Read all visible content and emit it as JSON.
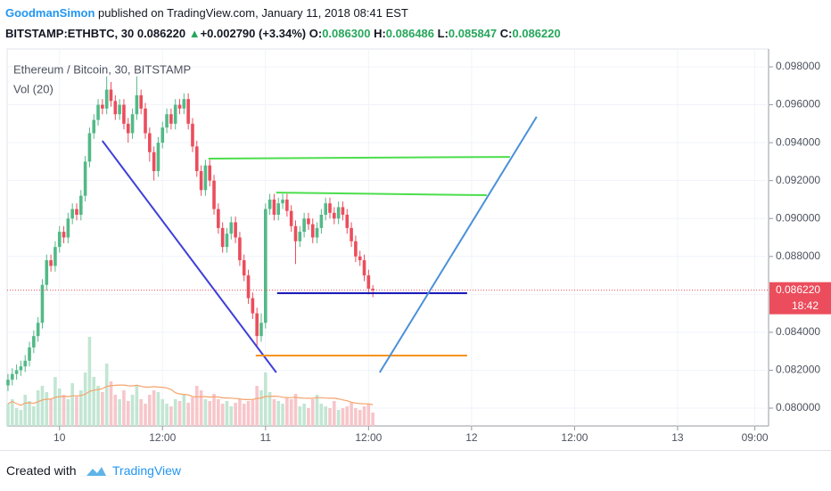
{
  "header": {
    "user": "GoodmanSimon",
    "published": "published on TradingView.com, January 11, 2018 08:41 EST",
    "symbol": "BITSTAMP:ETHBTC, 30",
    "last": "0.086220",
    "arrow": "▲",
    "change": "+0.002790 (+3.34%)",
    "o_label": "O:",
    "o": "0.086300",
    "h_label": "H:",
    "h": "0.086486",
    "l_label": "L:",
    "l": "0.085847",
    "c_label": "C:",
    "c": "0.086220"
  },
  "footer": {
    "created": "Created with",
    "brand": "TradingView"
  },
  "chart_data": {
    "type": "candlestick",
    "title": "Ethereum / Bitcoin, 30, BITSTAMP",
    "volume_label": "Vol (20)",
    "up_color": "#53b987",
    "down_color": "#eb4d5c",
    "volume_up_color": "#c2e6d3",
    "volume_down_color": "#f7c6ca",
    "volume_ma_color": "#f5a36a",
    "x": [
      -6,
      -5.5,
      -5,
      -4.5,
      -4,
      -3.5,
      -3,
      -2.5,
      -2,
      -1.5,
      -1,
      -0.5,
      0,
      0.5,
      1,
      1.5,
      2,
      2.5,
      3,
      3.5,
      4,
      4.5,
      5,
      5.5,
      6,
      6.5,
      7,
      7.5,
      8,
      8.5,
      9,
      9.5,
      10,
      10.5,
      11,
      11.5,
      12,
      12.5,
      13,
      13.5,
      14,
      14.5,
      15,
      15.5,
      16,
      16.5,
      17,
      17.5,
      18,
      18.5,
      19,
      19.5,
      20,
      20.5,
      21,
      21.5,
      22,
      22.5,
      23,
      23.5,
      24,
      24.5,
      25,
      25.5,
      26,
      26.5,
      27,
      27.5,
      28,
      28.5,
      29,
      29.5,
      30,
      30.5,
      31,
      31.5,
      32,
      32.5,
      33,
      33.5,
      34,
      34.5,
      35,
      35.5,
      36,
      36.5
    ],
    "open": [
      0.0812,
      0.0815,
      0.0818,
      0.082,
      0.0822,
      0.0825,
      0.0832,
      0.0838,
      0.0845,
      0.0865,
      0.0878,
      0.0875,
      0.0885,
      0.0893,
      0.089,
      0.09,
      0.0905,
      0.0902,
      0.0912,
      0.093,
      0.0945,
      0.0952,
      0.096,
      0.0958,
      0.0968,
      0.0962,
      0.0955,
      0.096,
      0.095,
      0.0945,
      0.0955,
      0.0965,
      0.0958,
      0.0945,
      0.0935,
      0.0925,
      0.094,
      0.0948,
      0.0955,
      0.095,
      0.096,
      0.0958,
      0.0963,
      0.095,
      0.0938,
      0.0925,
      0.0915,
      0.0928,
      0.092,
      0.0905,
      0.0895,
      0.0885,
      0.0892,
      0.0898,
      0.089,
      0.0878,
      0.087,
      0.0858,
      0.085,
      0.0838,
      0.0845,
      0.0905,
      0.091,
      0.0902,
      0.0908,
      0.091,
      0.0904,
      0.0896,
      0.0888,
      0.0893,
      0.09,
      0.0897,
      0.089,
      0.0895,
      0.0902,
      0.0908,
      0.0903,
      0.09,
      0.0906,
      0.0902,
      0.0895,
      0.0888,
      0.088,
      0.0878,
      0.087,
      0.0863
    ],
    "high": [
      0.0818,
      0.0821,
      0.0823,
      0.0825,
      0.0828,
      0.0835,
      0.0841,
      0.0848,
      0.0868,
      0.0881,
      0.0881,
      0.0888,
      0.0896,
      0.0896,
      0.0903,
      0.0908,
      0.0908,
      0.0915,
      0.0933,
      0.0948,
      0.0955,
      0.0963,
      0.0963,
      0.0975,
      0.0972,
      0.0965,
      0.0963,
      0.0963,
      0.0953,
      0.0958,
      0.0975,
      0.0968,
      0.0961,
      0.0948,
      0.0938,
      0.0943,
      0.0951,
      0.0958,
      0.0958,
      0.0963,
      0.0963,
      0.0966,
      0.0966,
      0.0953,
      0.0941,
      0.0928,
      0.0931,
      0.0931,
      0.0923,
      0.0908,
      0.0898,
      0.0895,
      0.0901,
      0.0901,
      0.0893,
      0.0881,
      0.0873,
      0.0861,
      0.0853,
      0.085,
      0.0908,
      0.0913,
      0.0913,
      0.0911,
      0.0913,
      0.0913,
      0.0907,
      0.0899,
      0.0896,
      0.0903,
      0.0903,
      0.09,
      0.0898,
      0.0905,
      0.0911,
      0.0911,
      0.0906,
      0.0909,
      0.0909,
      0.0905,
      0.0898,
      0.0891,
      0.0883,
      0.0881,
      0.0873,
      0.086486
    ],
    "low": [
      0.0809,
      0.0812,
      0.0815,
      0.0817,
      0.0819,
      0.0822,
      0.0829,
      0.0835,
      0.0842,
      0.0862,
      0.0872,
      0.0872,
      0.0882,
      0.0887,
      0.0887,
      0.0897,
      0.0899,
      0.0899,
      0.0909,
      0.0927,
      0.0942,
      0.0949,
      0.0955,
      0.0955,
      0.0959,
      0.0952,
      0.0952,
      0.0947,
      0.094,
      0.0942,
      0.0952,
      0.0955,
      0.0942,
      0.093,
      0.092,
      0.0922,
      0.0937,
      0.0945,
      0.0947,
      0.0947,
      0.0955,
      0.0955,
      0.0947,
      0.0935,
      0.0922,
      0.0912,
      0.0912,
      0.0917,
      0.0902,
      0.0892,
      0.0882,
      0.0882,
      0.0889,
      0.0887,
      0.0875,
      0.0867,
      0.0855,
      0.0847,
      0.0832,
      0.0835,
      0.0842,
      0.0902,
      0.0899,
      0.0899,
      0.0905,
      0.0901,
      0.0893,
      0.0876,
      0.0885,
      0.089,
      0.0894,
      0.0887,
      0.0887,
      0.0892,
      0.0899,
      0.09,
      0.0897,
      0.0897,
      0.0899,
      0.0892,
      0.0885,
      0.0877,
      0.0875,
      0.0867,
      0.086,
      0.085847
    ],
    "close": [
      0.0815,
      0.0818,
      0.082,
      0.0822,
      0.0825,
      0.0832,
      0.0838,
      0.0845,
      0.0865,
      0.0878,
      0.0875,
      0.0885,
      0.0893,
      0.089,
      0.09,
      0.0905,
      0.0902,
      0.0912,
      0.093,
      0.0945,
      0.0952,
      0.096,
      0.0958,
      0.0968,
      0.0962,
      0.0955,
      0.096,
      0.095,
      0.0945,
      0.0955,
      0.0965,
      0.0958,
      0.0945,
      0.0935,
      0.0925,
      0.094,
      0.0948,
      0.0955,
      0.095,
      0.096,
      0.0958,
      0.0963,
      0.095,
      0.0938,
      0.0925,
      0.0915,
      0.0928,
      0.092,
      0.0905,
      0.0895,
      0.0885,
      0.0892,
      0.0898,
      0.089,
      0.0878,
      0.087,
      0.0858,
      0.085,
      0.0838,
      0.0845,
      0.0905,
      0.091,
      0.0902,
      0.0908,
      0.091,
      0.0904,
      0.0896,
      0.0888,
      0.0893,
      0.09,
      0.0897,
      0.089,
      0.0895,
      0.0902,
      0.0908,
      0.0903,
      0.09,
      0.0906,
      0.0902,
      0.0895,
      0.0888,
      0.088,
      0.0878,
      0.087,
      0.0863,
      0.08622
    ],
    "volume": [
      25,
      30,
      20,
      18,
      35,
      28,
      22,
      40,
      45,
      38,
      30,
      55,
      42,
      35,
      30,
      48,
      33,
      40,
      60,
      100,
      55,
      45,
      38,
      70,
      50,
      35,
      30,
      40,
      28,
      35,
      45,
      30,
      25,
      35,
      40,
      38,
      30,
      25,
      22,
      30,
      28,
      35,
      26,
      32,
      45,
      40,
      30,
      28,
      36,
      30,
      25,
      28,
      22,
      26,
      30,
      25,
      28,
      30,
      45,
      40,
      60,
      38,
      30,
      28,
      25,
      32,
      30,
      36,
      22,
      25,
      20,
      30,
      35,
      25,
      22,
      20,
      28,
      18,
      20,
      22,
      26,
      20,
      18,
      22,
      25,
      15
    ],
    "xlim": [
      -6.1,
      82.6
    ],
    "xticks": [
      {
        "value": 0,
        "label": "10"
      },
      {
        "value": 12,
        "label": "12:00"
      },
      {
        "value": 24,
        "label": "11"
      },
      {
        "value": 36,
        "label": "12:00"
      },
      {
        "value": 48,
        "label": "12"
      },
      {
        "value": 60,
        "label": "12:00"
      },
      {
        "value": 72,
        "label": "13"
      },
      {
        "value": 81,
        "label": "09:00"
      }
    ],
    "ylim": [
      0.07906,
      0.09894
    ],
    "yticks": [
      {
        "value": 0.08,
        "label": "0.080000"
      },
      {
        "value": 0.082,
        "label": "0.082000"
      },
      {
        "value": 0.084,
        "label": "0.084000"
      },
      {
        "value": 0.086,
        "label": "0.086000"
      },
      {
        "value": 0.088,
        "label": "0.088000"
      },
      {
        "value": 0.09,
        "label": "0.090000"
      },
      {
        "value": 0.092,
        "label": "0.092000"
      },
      {
        "value": 0.094,
        "label": "0.094000"
      },
      {
        "value": 0.096,
        "label": "0.096000"
      },
      {
        "value": 0.098,
        "label": "0.098000"
      }
    ],
    "grid": true,
    "last_price": {
      "value": 0.08622,
      "label": "0.086220"
    },
    "countdown": "18:42",
    "last_price_color": "#eb4d5c",
    "drawings": [
      {
        "color": "#3f3fd8",
        "x": [
          4.99,
          25.25
        ],
        "y": [
          0.0941,
          0.08188
        ]
      },
      {
        "color": "#4cde4c",
        "x": [
          17.35,
          52.47
        ],
        "y": [
          0.09316,
          0.09325
        ]
      },
      {
        "color": "#4cde4c",
        "x": [
          25.25,
          49.77
        ],
        "y": [
          0.09137,
          0.09123
        ]
      },
      {
        "color": "#1a1ab8",
        "x": [
          25.35,
          47.48
        ],
        "y": [
          0.08606,
          0.08606
        ]
      },
      {
        "color": "#f7931e",
        "x": [
          22.86,
          47.48
        ],
        "y": [
          0.08277,
          0.08277
        ]
      },
      {
        "color": "#4a90d9",
        "x": [
          37.3,
          55.58
        ],
        "y": [
          0.08188,
          0.09537
        ]
      }
    ]
  }
}
